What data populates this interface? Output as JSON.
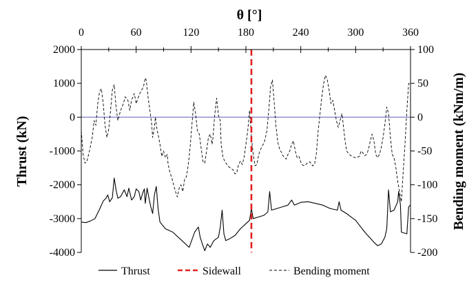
{
  "chart_data": {
    "type": "line",
    "title": "",
    "xlabel": "θ [°]",
    "ylabel_left": "Thrust (kN)",
    "ylabel_right": "Bending moment (kNm/m)",
    "xlim": [
      0,
      360
    ],
    "ylim_left": [
      -4000,
      2000
    ],
    "ylim_right": [
      -200,
      100
    ],
    "x_ticks": [
      0,
      60,
      120,
      180,
      240,
      300,
      360
    ],
    "y_ticks_left": [
      2000,
      1000,
      0,
      -1000,
      -2000,
      -3000,
      -4000
    ],
    "y_ticks_right": [
      100,
      50,
      0,
      -50,
      -100,
      -150,
      -200
    ],
    "grid": false,
    "legend_position": "bottom",
    "zero_line_color": "#6e6ec8",
    "sidewall": {
      "name": "Sidewall",
      "x": 186,
      "color": "#e0201e"
    },
    "series": [
      {
        "name": "Thrust",
        "axis": "left",
        "style": "solid",
        "color": "#000000",
        "points": [
          [
            0,
            -3100
          ],
          [
            5,
            -3120
          ],
          [
            10,
            -3070
          ],
          [
            15,
            -3000
          ],
          [
            20,
            -2720
          ],
          [
            24,
            -2480
          ],
          [
            27,
            -2400
          ],
          [
            29,
            -2300
          ],
          [
            31,
            -2500
          ],
          [
            34,
            -2380
          ],
          [
            36,
            -1800
          ],
          [
            38,
            -2150
          ],
          [
            40,
            -2400
          ],
          [
            43,
            -2350
          ],
          [
            47,
            -2150
          ],
          [
            50,
            -2350
          ],
          [
            52,
            -2100
          ],
          [
            55,
            -2450
          ],
          [
            58,
            -2350
          ],
          [
            60,
            -2120
          ],
          [
            63,
            -2200
          ],
          [
            65,
            -2450
          ],
          [
            67,
            -2250
          ],
          [
            69,
            -2120
          ],
          [
            70,
            -2550
          ],
          [
            72,
            -2100
          ],
          [
            74,
            -2400
          ],
          [
            76,
            -2650
          ],
          [
            78,
            -2850
          ],
          [
            80,
            -2300
          ],
          [
            82,
            -2050
          ],
          [
            84,
            -2700
          ],
          [
            86,
            -3100
          ],
          [
            92,
            -3300
          ],
          [
            100,
            -3400
          ],
          [
            110,
            -3650
          ],
          [
            118,
            -3850
          ],
          [
            124,
            -3400
          ],
          [
            128,
            -3250
          ],
          [
            130,
            -3550
          ],
          [
            133,
            -3800
          ],
          [
            135,
            -3950
          ],
          [
            138,
            -3750
          ],
          [
            141,
            -3850
          ],
          [
            145,
            -3650
          ],
          [
            150,
            -3550
          ],
          [
            152,
            -3250
          ],
          [
            154,
            -2750
          ],
          [
            156,
            -3450
          ],
          [
            158,
            -3650
          ],
          [
            162,
            -3600
          ],
          [
            168,
            -3500
          ],
          [
            174,
            -3300
          ],
          [
            180,
            -3150
          ],
          [
            184,
            -3050
          ],
          [
            186,
            -2700
          ],
          [
            188,
            -3000
          ],
          [
            194,
            -2950
          ],
          [
            200,
            -2900
          ],
          [
            204,
            -2800
          ],
          [
            206,
            -2200
          ],
          [
            208,
            -2750
          ],
          [
            214,
            -2700
          ],
          [
            220,
            -2650
          ],
          [
            226,
            -2600
          ],
          [
            230,
            -2450
          ],
          [
            233,
            -2600
          ],
          [
            240,
            -2520
          ],
          [
            248,
            -2500
          ],
          [
            256,
            -2550
          ],
          [
            264,
            -2600
          ],
          [
            272,
            -2700
          ],
          [
            280,
            -2750
          ],
          [
            282,
            -2500
          ],
          [
            284,
            -2750
          ],
          [
            290,
            -2850
          ],
          [
            300,
            -3050
          ],
          [
            310,
            -3400
          ],
          [
            320,
            -3700
          ],
          [
            324,
            -3800
          ],
          [
            328,
            -3750
          ],
          [
            332,
            -3550
          ],
          [
            334,
            -3300
          ],
          [
            336,
            -2150
          ],
          [
            338,
            -2800
          ],
          [
            342,
            -2750
          ],
          [
            346,
            -2500
          ],
          [
            347,
            -2200
          ],
          [
            349,
            -2600
          ],
          [
            350,
            -3400
          ],
          [
            356,
            -3450
          ],
          [
            358,
            -2650
          ],
          [
            360,
            -2600
          ]
        ]
      },
      {
        "name": "Bending moment",
        "axis": "right",
        "style": "dashed",
        "color": "#000000",
        "points": [
          [
            0,
            -20
          ],
          [
            2,
            -55
          ],
          [
            4,
            -68
          ],
          [
            6,
            -66
          ],
          [
            9,
            -50
          ],
          [
            12,
            -30
          ],
          [
            14,
            -5
          ],
          [
            16,
            -12
          ],
          [
            18,
            20
          ],
          [
            20,
            38
          ],
          [
            22,
            42
          ],
          [
            24,
            20
          ],
          [
            26,
            -12
          ],
          [
            28,
            -30
          ],
          [
            30,
            -18
          ],
          [
            32,
            10
          ],
          [
            34,
            40
          ],
          [
            36,
            48
          ],
          [
            38,
            15
          ],
          [
            40,
            -5
          ],
          [
            43,
            10
          ],
          [
            46,
            20
          ],
          [
            48,
            30
          ],
          [
            51,
            25
          ],
          [
            53,
            10
          ],
          [
            55,
            25
          ],
          [
            58,
            35
          ],
          [
            60,
            20
          ],
          [
            62,
            28
          ],
          [
            64,
            35
          ],
          [
            66,
            40
          ],
          [
            68,
            45
          ],
          [
            70,
            58
          ],
          [
            71,
            55
          ],
          [
            73,
            30
          ],
          [
            75,
            10
          ],
          [
            77,
            -10
          ],
          [
            78,
            -30
          ],
          [
            80,
            -15
          ],
          [
            81,
            0
          ],
          [
            83,
            -20
          ],
          [
            84,
            -25
          ],
          [
            86,
            -40
          ],
          [
            88,
            -58
          ],
          [
            90,
            -50
          ],
          [
            92,
            -60
          ],
          [
            94,
            -55
          ],
          [
            95,
            -70
          ],
          [
            97,
            -82
          ],
          [
            99,
            -90
          ],
          [
            101,
            -100
          ],
          [
            103,
            -110
          ],
          [
            105,
            -118
          ],
          [
            107,
            -105
          ],
          [
            109,
            -100
          ],
          [
            111,
            -110
          ],
          [
            113,
            -92
          ],
          [
            115,
            -88
          ],
          [
            117,
            -70
          ],
          [
            119,
            -45
          ],
          [
            121,
            -10
          ],
          [
            123,
            22
          ],
          [
            125,
            5
          ],
          [
            127,
            -20
          ],
          [
            129,
            -25
          ],
          [
            131,
            -45
          ],
          [
            133,
            -65
          ],
          [
            135,
            -68
          ],
          [
            137,
            -50
          ],
          [
            139,
            -30
          ],
          [
            141,
            -25
          ],
          [
            143,
            -40
          ],
          [
            144,
            -30
          ],
          [
            146,
            5
          ],
          [
            148,
            28
          ],
          [
            150,
            2
          ],
          [
            152,
            -5
          ],
          [
            153,
            -40
          ],
          [
            155,
            -60
          ],
          [
            157,
            -65
          ],
          [
            160,
            -72
          ],
          [
            163,
            -75
          ],
          [
            166,
            -78
          ],
          [
            168,
            -84
          ],
          [
            170,
            -82
          ],
          [
            172,
            -70
          ],
          [
            174,
            -65
          ],
          [
            176,
            -70
          ],
          [
            178,
            -60
          ],
          [
            180,
            -40
          ],
          [
            182,
            -20
          ],
          [
            184,
            10
          ],
          [
            186,
            -30
          ],
          [
            188,
            -55
          ],
          [
            190,
            -72
          ],
          [
            192,
            -70
          ],
          [
            194,
            -55
          ],
          [
            196,
            -48
          ],
          [
            198,
            -42
          ],
          [
            200,
            -38
          ],
          [
            203,
            -20
          ],
          [
            205,
            10
          ],
          [
            207,
            45
          ],
          [
            209,
            55
          ],
          [
            211,
            20
          ],
          [
            213,
            -15
          ],
          [
            215,
            -38
          ],
          [
            217,
            -48
          ],
          [
            219,
            -52
          ],
          [
            221,
            -58
          ],
          [
            224,
            -62
          ],
          [
            226,
            -55
          ],
          [
            228,
            -50
          ],
          [
            230,
            -40
          ],
          [
            232,
            -35
          ],
          [
            234,
            -50
          ],
          [
            236,
            -60
          ],
          [
            238,
            -58
          ],
          [
            241,
            -70
          ],
          [
            244,
            -72
          ],
          [
            247,
            -68
          ],
          [
            250,
            -66
          ],
          [
            253,
            -72
          ],
          [
            255,
            -70
          ],
          [
            257,
            -55
          ],
          [
            259,
            -20
          ],
          [
            261,
            5
          ],
          [
            263,
            30
          ],
          [
            265,
            50
          ],
          [
            267,
            62
          ],
          [
            269,
            55
          ],
          [
            271,
            40
          ],
          [
            273,
            20
          ],
          [
            275,
            25
          ],
          [
            277,
            10
          ],
          [
            279,
            -5
          ],
          [
            281,
            -15
          ],
          [
            283,
            -5
          ],
          [
            285,
            5
          ],
          [
            286,
            -5
          ],
          [
            288,
            -30
          ],
          [
            290,
            -50
          ],
          [
            293,
            -55
          ],
          [
            296,
            -58
          ],
          [
            300,
            -60
          ],
          [
            304,
            -58
          ],
          [
            306,
            -50
          ],
          [
            308,
            -53
          ],
          [
            310,
            -57
          ],
          [
            312,
            -55
          ],
          [
            314,
            -48
          ],
          [
            316,
            -35
          ],
          [
            318,
            -25
          ],
          [
            320,
            -35
          ],
          [
            322,
            -55
          ],
          [
            324,
            -60
          ],
          [
            326,
            -55
          ],
          [
            328,
            -45
          ],
          [
            330,
            -30
          ],
          [
            332,
            -10
          ],
          [
            334,
            15
          ],
          [
            336,
            5
          ],
          [
            338,
            -30
          ],
          [
            340,
            -55
          ],
          [
            342,
            -60
          ],
          [
            344,
            -75
          ],
          [
            346,
            -95
          ],
          [
            348,
            -110
          ],
          [
            350,
            -125
          ],
          [
            352,
            -80
          ],
          [
            354,
            -40
          ],
          [
            356,
            10
          ],
          [
            358,
            50
          ],
          [
            360,
            48
          ]
        ]
      }
    ],
    "legend": [
      {
        "label": "Thrust",
        "style": "solid",
        "color": "#000000"
      },
      {
        "label": "Sidewall",
        "style": "dashed-bold",
        "color": "#e0201e"
      },
      {
        "label": "Bending moment",
        "style": "dashed",
        "color": "#000000"
      }
    ]
  }
}
